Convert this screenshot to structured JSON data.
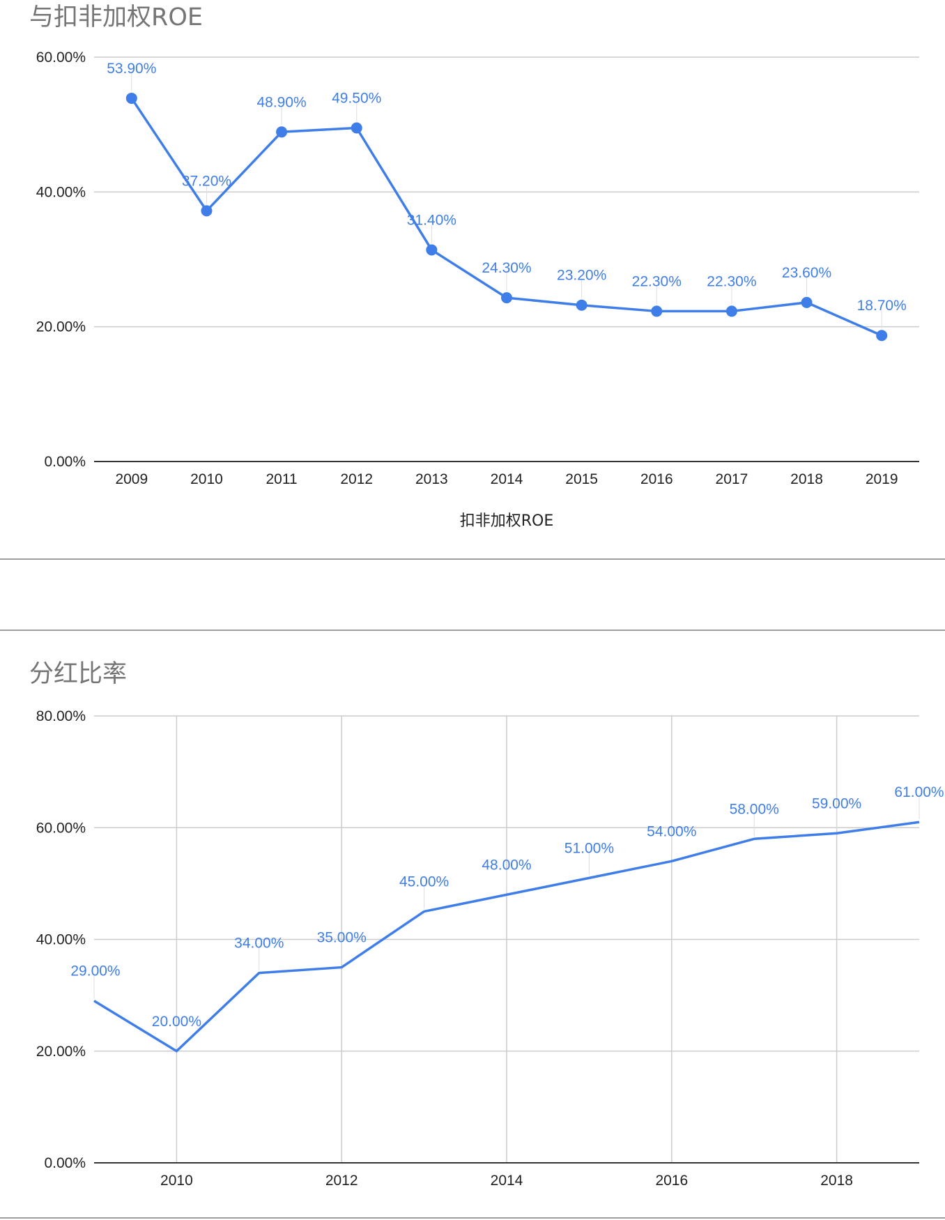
{
  "colors": {
    "series": "#3f7ee8",
    "grid": "#cccccc",
    "axis": "#333333",
    "title": "#757575"
  },
  "chart_data": [
    {
      "type": "line",
      "title": "与扣非加权ROE",
      "xlabel": "扣非加权ROE",
      "ylabel": "",
      "categories": [
        "2009",
        "2010",
        "2011",
        "2012",
        "2013",
        "2014",
        "2015",
        "2016",
        "2017",
        "2018",
        "2019"
      ],
      "series": [
        {
          "values": [
            53.9,
            37.2,
            48.9,
            49.5,
            31.4,
            24.3,
            23.2,
            22.3,
            22.3,
            23.6,
            18.7
          ],
          "labels": [
            "53.90%",
            "37.20%",
            "48.90%",
            "49.50%",
            "31.40%",
            "24.30%",
            "23.20%",
            "22.30%",
            "22.30%",
            "23.60%",
            "18.70%"
          ]
        }
      ],
      "ylim": [
        0,
        60
      ],
      "yticks": [
        "0.00%",
        "20.00%",
        "40.00%",
        "60.00%"
      ],
      "markers": true,
      "grid": "horizontal"
    },
    {
      "type": "line",
      "title": "分红比率",
      "xlabel": "",
      "ylabel": "",
      "x": [
        2009,
        2010,
        2011,
        2012,
        2013,
        2014,
        2015,
        2016,
        2017,
        2018,
        2019
      ],
      "xlim": [
        2009,
        2019
      ],
      "xticks": [
        "2010",
        "2012",
        "2014",
        "2016",
        "2018"
      ],
      "series": [
        {
          "values": [
            29,
            20,
            34,
            35,
            45,
            48,
            51,
            54,
            58,
            59,
            61
          ],
          "labels": [
            "29.00%",
            "20.00%",
            "34.00%",
            "35.00%",
            "45.00%",
            "48.00%",
            "51.00%",
            "54.00%",
            "58.00%",
            "59.00%",
            "61.00%"
          ]
        }
      ],
      "ylim": [
        0,
        80
      ],
      "yticks": [
        "0.00%",
        "20.00%",
        "40.00%",
        "60.00%",
        "80.00%"
      ],
      "markers": false,
      "grid": "both"
    }
  ]
}
